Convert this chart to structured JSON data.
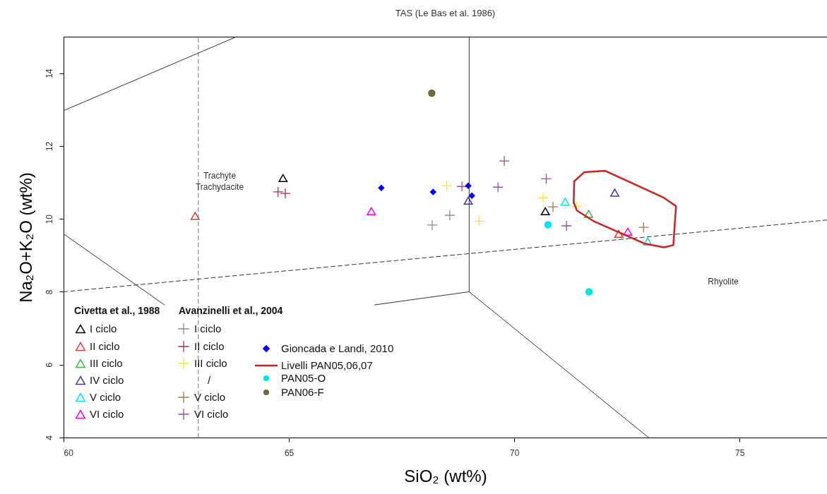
{
  "chart_data": {
    "type": "scatter",
    "title": "TAS (Le Bas et al. 1986)",
    "xlabel": "SiO₂  (wt%)",
    "ylabel": "Na₂O+K₂O  (wt%)",
    "xlim": [
      60,
      76.94
    ],
    "ylim": [
      4,
      15
    ],
    "xticks": [
      60,
      65,
      70,
      75
    ],
    "yticks": [
      4,
      6,
      8,
      10,
      12,
      14
    ],
    "legend": "bottom left",
    "annotations": [
      "Civetta et al., 1988",
      "Avanzinelli et al., 2004",
      "/",
      "Trachyte\nTrachydacite",
      "Rhyolite"
    ],
    "series": [
      {
        "name": "I ciclo",
        "color": "#000000",
        "marker": "triangle",
        "x": [
          64.87,
          70.69
        ],
        "values": [
          11.12,
          10.21
        ]
      },
      {
        "name": "II ciclo",
        "color": "#e03c3c",
        "marker": "triangle",
        "x": [
          62.92,
          72.32
        ],
        "values": [
          10.08,
          9.59
        ]
      },
      {
        "name": "III ciclo",
        "color": "#3cb44b",
        "marker": "triangle",
        "x": [
          71.65
        ],
        "values": [
          10.14
        ]
      },
      {
        "name": "IV ciclo",
        "color": "#3c3ca0",
        "marker": "triangle",
        "x": [
          68.98,
          72.23
        ],
        "values": [
          10.5,
          10.72
        ]
      },
      {
        "name": "V ciclo",
        "color": "#00e5ee",
        "marker": "triangle",
        "x": [
          71.13,
          72.96
        ],
        "values": [
          10.47,
          9.38
        ]
      },
      {
        "name": "VI ciclo",
        "color": "#ee00ee",
        "marker": "triangle",
        "x": [
          66.83,
          72.52
        ],
        "values": [
          10.21,
          9.65
        ]
      },
      {
        "name": "I ciclo",
        "color": "#8c8c8c",
        "marker": "cross",
        "x": [
          68.57,
          68.18
        ],
        "values": [
          10.1,
          9.83
        ]
      },
      {
        "name": "II ciclo",
        "color": "#b03050",
        "marker": "cross",
        "x": [
          64.76,
          64.92
        ],
        "values": [
          10.74,
          10.7
        ]
      },
      {
        "name": "III ciclo",
        "color": "#f5e62e",
        "marker": "cross",
        "x": [
          68.5,
          69.22,
          70.64,
          71.38
        ],
        "values": [
          10.91,
          9.94,
          10.58,
          10.35
        ]
      },
      {
        "name": "V ciclo",
        "color": "#a07850",
        "marker": "cross",
        "x": [
          70.86,
          72.87
        ],
        "values": [
          10.33,
          9.77
        ]
      },
      {
        "name": "VI ciclo",
        "color": "#9050a0",
        "marker": "cross",
        "x": [
          69.78,
          68.84,
          69.64,
          70.71,
          71.16
        ],
        "values": [
          11.59,
          10.89,
          10.87,
          11.1,
          9.81
        ]
      },
      {
        "name": "Gioncada e Landi, 2010",
        "color": "#0000ff",
        "marker": "diamond",
        "x": [
          67.05,
          68.2,
          68.98,
          69.06
        ],
        "values": [
          10.85,
          10.74,
          10.91,
          10.64
        ]
      },
      {
        "name": "Livelli PAN05,06,07",
        "type": "line",
        "color": "#cc2222",
        "line_style": "solid",
        "x": [
          71.33,
          71.55,
          72.02,
          73.32,
          73.59,
          73.53,
          73.32,
          72.9,
          71.76,
          71.39,
          71.32
        ],
        "values": [
          11.03,
          11.28,
          11.32,
          10.58,
          10.35,
          9.28,
          9.22,
          9.32,
          9.94,
          10.23,
          10.45
        ]
      },
      {
        "type": "line",
        "color": "#cc2222",
        "line_style": "solid",
        "x": [
          71.32,
          71.33
        ],
        "values": [
          10.45,
          11.03
        ]
      },
      {
        "name": "PAN05-O",
        "color": "#00e5e5",
        "marker": "circle",
        "x": [
          70.75,
          71.66
        ],
        "values": [
          9.84,
          8.0
        ]
      },
      {
        "name": "PAN06-F",
        "color": "#6b6b3a",
        "marker": "circle",
        "x": [
          68.17
        ],
        "values": [
          13.45
        ]
      },
      {
        "type": "line",
        "color": "#333333",
        "line_style": "solid",
        "x": [
          60,
          63.84
        ],
        "values": [
          12.97,
          15
        ]
      },
      {
        "type": "line",
        "color": "#333333",
        "line_style": "solid",
        "x": [
          69,
          69
        ],
        "values": [
          15,
          8
        ]
      },
      {
        "type": "line",
        "color": "#333333",
        "line_style": "solid",
        "x": [
          69,
          66.9
        ],
        "values": [
          8,
          7.64
        ]
      },
      {
        "type": "line",
        "color": "#333333",
        "line_style": "solid",
        "x": [
          69,
          72.98
        ],
        "values": [
          8,
          4
        ]
      },
      {
        "type": "line",
        "color": "#333333",
        "line_style": "solid",
        "x": [
          60,
          62.24
        ],
        "values": [
          9.59,
          7.64
        ]
      },
      {
        "type": "line",
        "color": "#6b6b8a",
        "line_style": "dashed",
        "x": [
          62.99,
          62.99
        ],
        "values": [
          4,
          15
        ]
      },
      {
        "type": "line",
        "color": "#333333",
        "line_style": "dashed",
        "x": [
          60,
          76.94
        ],
        "values": [
          8,
          9.97
        ]
      }
    ]
  }
}
